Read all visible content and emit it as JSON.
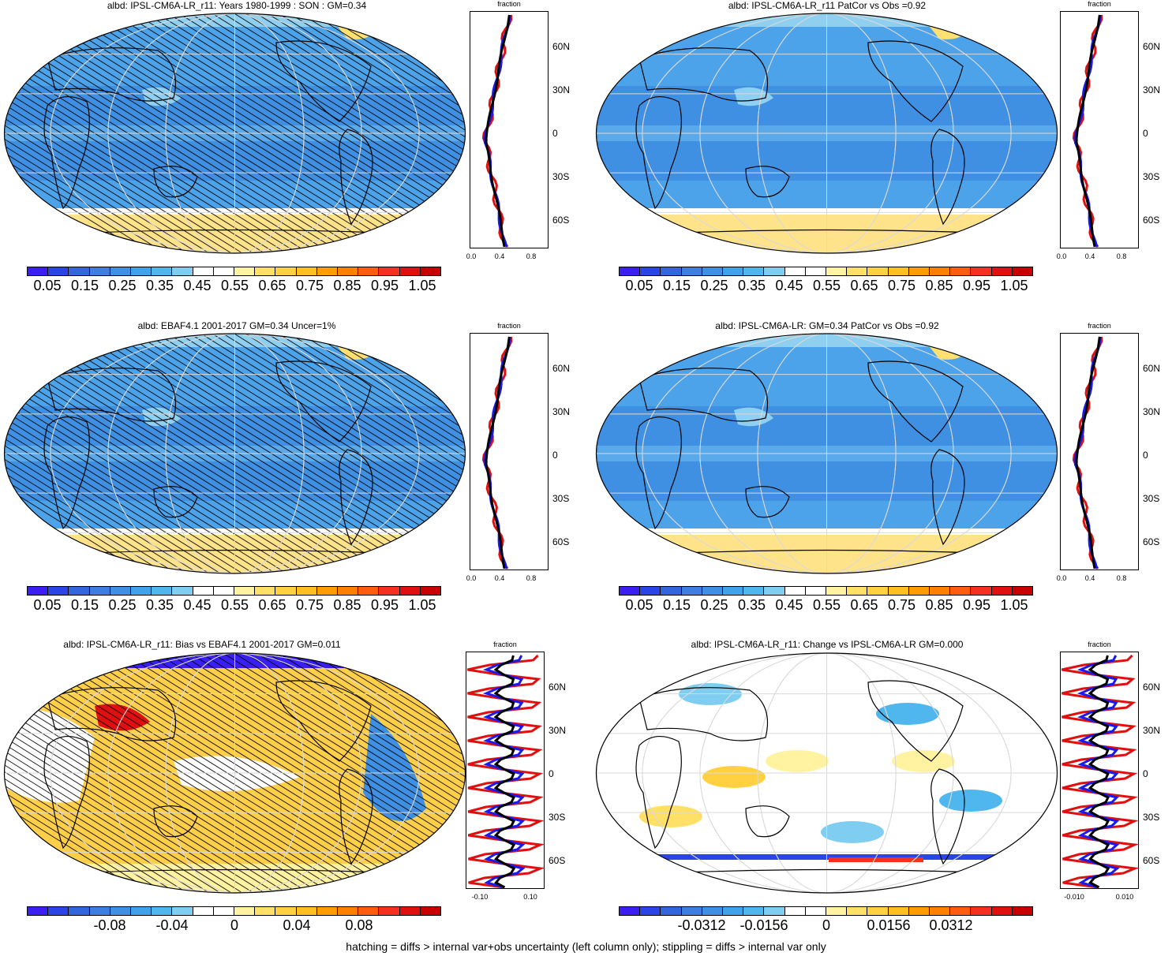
{
  "panels": [
    {
      "title": "albd: IPSL-CM6A-LR_r11: Years 1980-1999 : SON : GM=0.34",
      "cb_labels": [
        "0.05",
        "0.15",
        "0.25",
        "0.35",
        "0.45",
        "0.55",
        "0.65",
        "0.75",
        "0.85",
        "0.95",
        "1.05"
      ],
      "profile_ticks": [
        "0.0",
        "0.4",
        "0.8"
      ],
      "profile_label": "fraction",
      "lat_labels": [
        "60N",
        "30N",
        "0",
        "30S",
        "60S"
      ],
      "hatched": true,
      "kind": "abs"
    },
    {
      "title": "albd: IPSL-CM6A-LR_r11 PatCor vs Obs =0.92",
      "cb_labels": [
        "0.05",
        "0.15",
        "0.25",
        "0.35",
        "0.45",
        "0.55",
        "0.65",
        "0.75",
        "0.85",
        "0.95",
        "1.05"
      ],
      "profile_ticks": [
        "0.0",
        "0.4",
        "0.8"
      ],
      "profile_label": "fraction",
      "lat_labels": [
        "60N",
        "30N",
        "0",
        "30S",
        "60S"
      ],
      "hatched": false,
      "kind": "abs"
    },
    {
      "title": "albd: EBAF4.1 2001-2017 GM=0.34 Uncer=1%",
      "cb_labels": [
        "0.05",
        "0.15",
        "0.25",
        "0.35",
        "0.45",
        "0.55",
        "0.65",
        "0.75",
        "0.85",
        "0.95",
        "1.05"
      ],
      "profile_ticks": [
        "0.0",
        "0.4",
        "0.8"
      ],
      "profile_label": "fraction",
      "lat_labels": [
        "60N",
        "30N",
        "0",
        "30S",
        "60S"
      ],
      "hatched": true,
      "kind": "abs"
    },
    {
      "title": "albd: IPSL-CM6A-LR: GM=0.34 PatCor vs Obs =0.92",
      "cb_labels": [
        "0.05",
        "0.15",
        "0.25",
        "0.35",
        "0.45",
        "0.55",
        "0.65",
        "0.75",
        "0.85",
        "0.95",
        "1.05"
      ],
      "profile_ticks": [
        "0.0",
        "0.4",
        "0.8"
      ],
      "profile_label": "fraction",
      "lat_labels": [
        "60N",
        "30N",
        "0",
        "30S",
        "60S"
      ],
      "hatched": false,
      "kind": "abs"
    },
    {
      "title": "albd: IPSL-CM6A-LR_r11: Bias vs EBAF4.1 2001-2017  GM=0.011",
      "cb_labels": [
        "-0.08",
        "-0.04",
        "0",
        "0.04",
        "0.08"
      ],
      "profile_ticks": [
        "-0.10",
        "0.10"
      ],
      "profile_label": "fraction",
      "lat_labels": [
        "60N",
        "30N",
        "0",
        "30S",
        "60S"
      ],
      "hatched": true,
      "kind": "bias"
    },
    {
      "title": "albd: IPSL-CM6A-LR_r11: Change vs IPSL-CM6A-LR GM=0.000",
      "cb_labels": [
        "-0.0312",
        "-0.0156",
        "0",
        "0.0156",
        "0.0312"
      ],
      "profile_ticks": [
        "-0.010",
        "0.010"
      ],
      "profile_label": "fraction",
      "lat_labels": [
        "60N",
        "30N",
        "0",
        "30S",
        "60S"
      ],
      "hatched": false,
      "kind": "change"
    }
  ],
  "colors": {
    "abs": [
      "#3b1ff2",
      "#2a44e6",
      "#3366dd",
      "#3d7ee0",
      "#3f8fe5",
      "#3fa2ea",
      "#4fb6ee",
      "#7fcdf0",
      "#ffffff",
      "#ffffff",
      "#fff2a0",
      "#ffe066",
      "#ffd140",
      "#ffbf20",
      "#ff9d00",
      "#ff7f00",
      "#ff5c10",
      "#f53020",
      "#e01010",
      "#c80000"
    ],
    "div": [
      "#3b1ff2",
      "#2a44e6",
      "#3366dd",
      "#3d7ee0",
      "#3f8fe5",
      "#3fa2ea",
      "#4fb6ee",
      "#7fcdf0",
      "#ffffff",
      "#ffffff",
      "#fff2a0",
      "#ffe066",
      "#ffd140",
      "#ffbf20",
      "#ff9d00",
      "#ff7f00",
      "#ff5c10",
      "#f53020",
      "#e01010",
      "#c80000"
    ]
  },
  "footer": "hatching = diffs > internal var+obs uncertainty (left column only); stippling = diffs > internal var only"
}
